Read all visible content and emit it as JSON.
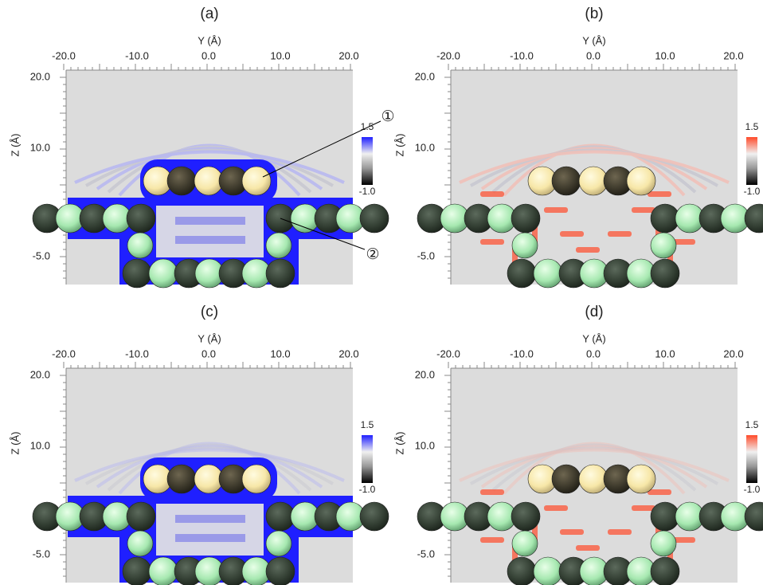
{
  "panels": [
    {
      "label": "(a)",
      "x_axis_title": "Y (Å)",
      "x_tick_labels": [
        "-20.0",
        "-10.0",
        "0.0",
        "10.0",
        "20.0"
      ],
      "y_axis_title": "Z (Å)",
      "y_tick_labels": [
        "20.0",
        "10.0",
        "-5.0"
      ],
      "colorbar_labels": [
        "1.5",
        "-1.0"
      ],
      "color": "#1f1fff",
      "annotations": [
        "①",
        "②"
      ]
    },
    {
      "label": "(b)",
      "x_axis_title": "Y (Å)",
      "x_tick_labels": [
        "-20.0",
        "-10.0",
        "0.0",
        "10.0",
        "20.0"
      ],
      "y_axis_title": "Z (Å)",
      "y_tick_labels": [
        "20.0",
        "10.0",
        "-5.0"
      ],
      "colorbar_labels": [
        "1.5",
        "-1.0"
      ],
      "color": "#ff4a2a"
    },
    {
      "label": "(c)",
      "x_axis_title": "Y (Å)",
      "x_tick_labels": [
        "-20.0",
        "-10.0",
        "0.0",
        "10.0",
        "20.0"
      ],
      "y_axis_title": "Z (Å)",
      "y_tick_labels": [
        "20.0",
        "10.0",
        "-5.0"
      ],
      "colorbar_labels": [
        "1.5",
        "-1.0"
      ],
      "color": "#1f1fff"
    },
    {
      "label": "(d)",
      "x_axis_title": "Y (Å)",
      "x_tick_labels": [
        "-20.0",
        "-10.0",
        "0.0",
        "10.0",
        "20.0"
      ],
      "y_axis_title": "Z (Å)",
      "y_tick_labels": [
        "20.0",
        "10.0",
        "-5.0"
      ],
      "colorbar_labels": [
        "1.5",
        "-1.0"
      ],
      "color": "#ff4a2a"
    }
  ]
}
